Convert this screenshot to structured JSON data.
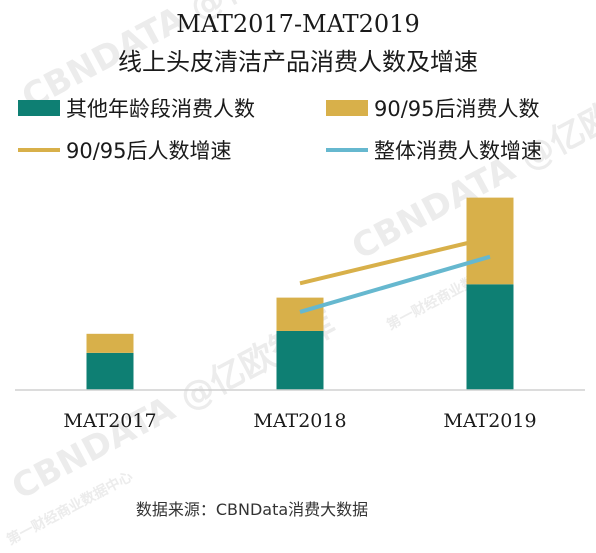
{
  "chart_data": {
    "type": "bar",
    "stacked": true,
    "title": "MAT2017-MAT2019",
    "subtitle": "线上头皮清洁产品消费人数及增速",
    "categories": [
      "MAT2017",
      "MAT2018",
      "MAT2019"
    ],
    "series": [
      {
        "name": "其他年龄段消费人数",
        "type": "bar",
        "color": "#0e7f73",
        "values": [
          39,
          62,
          111
        ]
      },
      {
        "name": "90/95后消费人数",
        "type": "bar",
        "color": "#d8b04a",
        "values": [
          20,
          35,
          91
        ]
      },
      {
        "name": "90/95后人数增速",
        "type": "line",
        "color": "#d8b04a",
        "values": [
          null,
          112,
          160
        ]
      },
      {
        "name": "整体消费人数增速",
        "type": "line",
        "color": "#66b8cf",
        "values": [
          null,
          82,
          140
        ]
      }
    ],
    "ylim": [
      0,
      210
    ],
    "y2lim": [
      0,
      210
    ],
    "grid": false,
    "legend_position": "top",
    "source": "数据来源：CBNData消费大数据"
  },
  "watermarks": [
    "CBNDATA @亿欧智库",
    "第一财经商业数据中心"
  ]
}
